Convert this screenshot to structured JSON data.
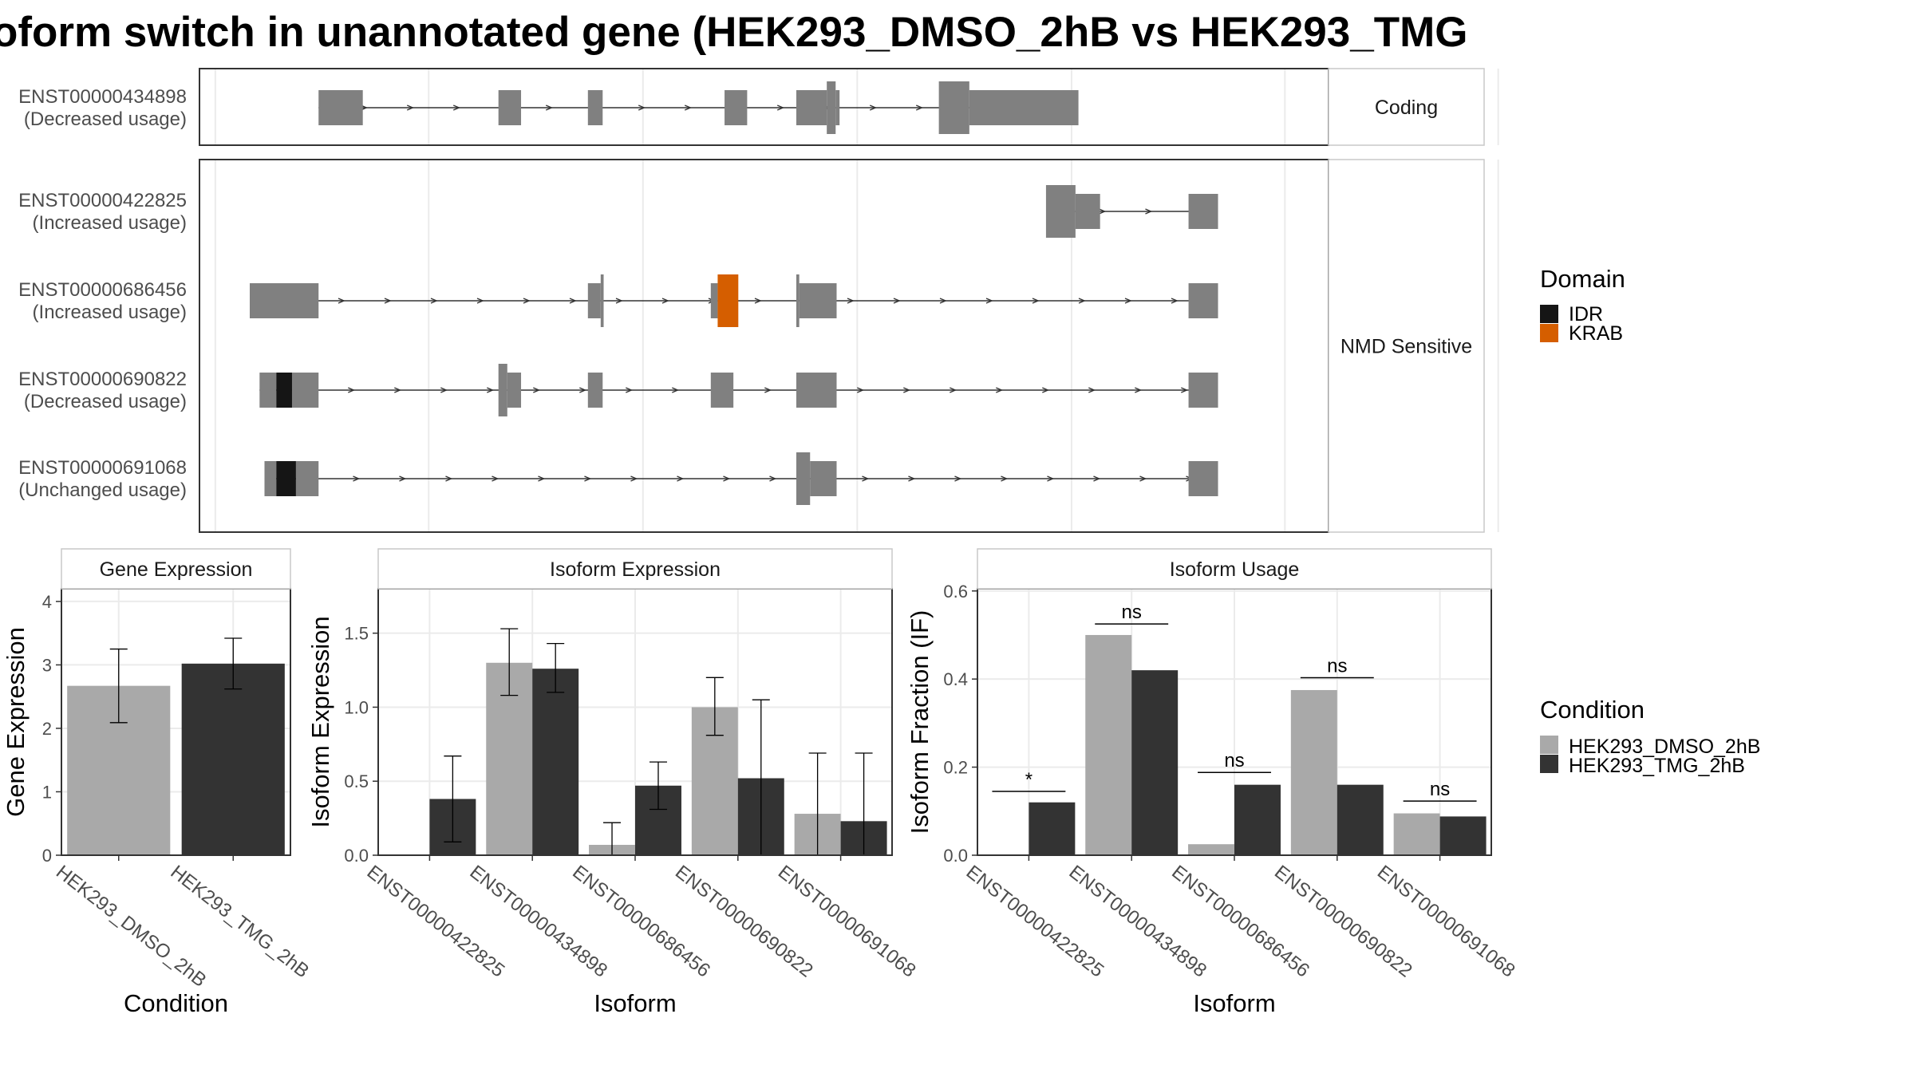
{
  "title": "oform switch in unannotated gene (HEK293_DMSO_2hB vs HEK293_TMG",
  "colors": {
    "exon": "#808080",
    "idr": "#151515",
    "krab": "#D55E00",
    "dmso": "#A9A9A9",
    "tmg": "#333333",
    "grid": "#ebebeb",
    "strip_bg": "#ffffff"
  },
  "structure": {
    "x_range": [
      0,
      1000
    ],
    "facets": [
      {
        "label": "Coding",
        "isoforms": [
          "ENST00000434898"
        ]
      },
      {
        "label": "NMD Sensitive",
        "isoforms": [
          "ENST00000422825",
          "ENST00000686456",
          "ENST00000690822",
          "ENST00000691068"
        ]
      }
    ],
    "isoforms": [
      {
        "id": "ENST00000434898",
        "usage": "(Decreased usage)",
        "intron": [
          70,
          768
        ],
        "exons": [
          [
            70,
            115,
            "n"
          ],
          [
            253,
            276,
            "n"
          ],
          [
            344,
            359,
            "n"
          ],
          [
            483,
            506,
            "n"
          ],
          [
            556,
            587,
            "n"
          ],
          [
            587,
            596,
            "w"
          ],
          [
            596,
            600,
            "n"
          ],
          [
            701,
            732,
            "w"
          ],
          [
            732,
            843,
            "n"
          ]
        ],
        "domains": []
      },
      {
        "id": "ENST00000422825",
        "usage": "(Increased usage)",
        "intron": [
          821,
          985
        ],
        "exons": [
          [
            810,
            840,
            "w"
          ],
          [
            840,
            865,
            "n"
          ],
          [
            955,
            985,
            "n"
          ]
        ],
        "domains": []
      },
      {
        "id": "ENST00000686456",
        "usage": "(Increased usage)",
        "intron": [
          0,
          985
        ],
        "exons": [
          [
            0,
            70,
            "n"
          ],
          [
            344,
            357,
            "n"
          ],
          [
            357,
            360,
            "w"
          ],
          [
            469,
            476,
            "n"
          ],
          [
            556,
            559,
            "w"
          ],
          [
            559,
            597,
            "n"
          ],
          [
            955,
            985,
            "n"
          ]
        ],
        "domains": [
          [
            476,
            497,
            "w",
            "krab"
          ]
        ]
      },
      {
        "id": "ENST00000690822",
        "usage": "(Decreased usage)",
        "intron": [
          10,
          985
        ],
        "exons": [
          [
            10,
            27,
            "n"
          ],
          [
            43,
            70,
            "n"
          ],
          [
            253,
            262,
            "w"
          ],
          [
            262,
            276,
            "n"
          ],
          [
            344,
            359,
            "n"
          ],
          [
            469,
            492,
            "n"
          ],
          [
            556,
            597,
            "n"
          ],
          [
            955,
            985,
            "n"
          ]
        ],
        "domains": [
          [
            27,
            43,
            "n",
            "idr"
          ]
        ]
      },
      {
        "id": "ENST00000691068",
        "usage": "(Unchanged usage)",
        "intron": [
          15,
          985
        ],
        "exons": [
          [
            15,
            27,
            "n"
          ],
          [
            47,
            70,
            "n"
          ],
          [
            556,
            570,
            "w"
          ],
          [
            570,
            597,
            "n"
          ],
          [
            955,
            985,
            "n"
          ]
        ],
        "domains": [
          [
            27,
            47,
            "n",
            "idr"
          ]
        ]
      }
    ]
  },
  "legend_domain": {
    "title": "Domain",
    "items": [
      {
        "label": "IDR",
        "color": "#151515"
      },
      {
        "label": "KRAB",
        "color": "#D55E00"
      }
    ]
  },
  "legend_condition": {
    "title": "Condition",
    "items": [
      {
        "label": "HEK293_DMSO_2hB",
        "color": "#A9A9A9"
      },
      {
        "label": "HEK293_TMG_2hB",
        "color": "#333333"
      }
    ]
  },
  "chart_data": [
    {
      "type": "bar",
      "title": "Gene Expression",
      "xlabel": "Condition",
      "ylabel": "Gene Expression",
      "ylim": [
        0,
        4.2
      ],
      "yticks": [
        0,
        1,
        2,
        3,
        4
      ],
      "categories": [
        "HEK293_DMSO_2hB",
        "HEK293_TMG_2hB"
      ],
      "values": [
        2.67,
        3.02
      ],
      "err_low": [
        2.09,
        2.62
      ],
      "err_high": [
        3.25,
        3.42
      ]
    },
    {
      "type": "bar",
      "title": "Isoform Expression",
      "xlabel": "Isoform",
      "ylabel": "Isoform Expression",
      "ylim": [
        0,
        1.8
      ],
      "yticks": [
        0.0,
        0.5,
        1.0,
        1.5
      ],
      "categories": [
        "ENST00000422825",
        "ENST00000434898",
        "ENST00000686456",
        "ENST00000690822",
        "ENST00000691068"
      ],
      "series": [
        {
          "name": "HEK293_DMSO_2hB",
          "values": [
            0.0,
            1.3,
            0.07,
            1.0,
            0.28
          ],
          "err_low": [
            0.0,
            1.08,
            0.0,
            0.81,
            0.0
          ],
          "err_high": [
            0.0,
            1.53,
            0.22,
            1.2,
            0.69
          ]
        },
        {
          "name": "HEK293_TMG_2hB",
          "values": [
            0.38,
            1.26,
            0.47,
            0.52,
            0.23
          ],
          "err_low": [
            0.09,
            1.1,
            0.31,
            0.0,
            0.0
          ],
          "err_high": [
            0.67,
            1.43,
            0.63,
            1.05,
            0.69
          ]
        }
      ]
    },
    {
      "type": "bar",
      "title": "Isoform Usage",
      "xlabel": "Isoform",
      "ylabel": "Isoform Fraction (IF)",
      "ylim": [
        0,
        0.605
      ],
      "yticks": [
        0.0,
        0.2,
        0.4,
        0.6
      ],
      "categories": [
        "ENST00000422825",
        "ENST00000434898",
        "ENST00000686456",
        "ENST00000690822",
        "ENST00000691068"
      ],
      "series": [
        {
          "name": "HEK293_DMSO_2hB",
          "values": [
            0.0,
            0.5,
            0.025,
            0.375,
            0.095
          ]
        },
        {
          "name": "HEK293_TMG_2hB",
          "values": [
            0.12,
            0.42,
            0.16,
            0.16,
            0.088
          ]
        }
      ],
      "significance": [
        "*",
        "ns",
        "ns",
        "ns",
        "ns"
      ],
      "sig_y": [
        0.145,
        0.525,
        0.188,
        0.403,
        0.123
      ]
    }
  ]
}
